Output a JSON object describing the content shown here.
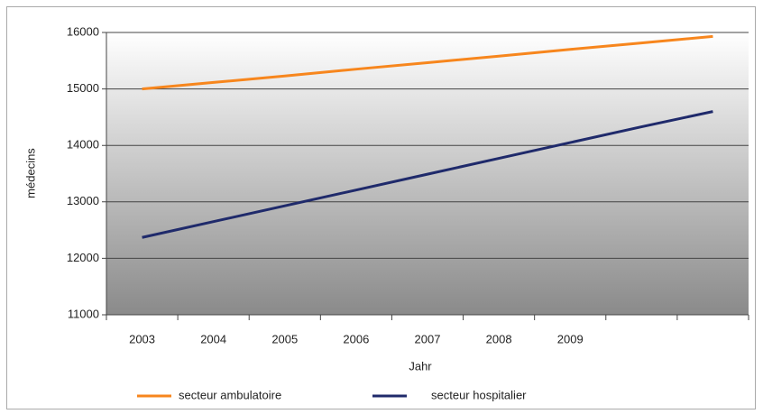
{
  "chart_data": {
    "type": "line",
    "xlabel": "Jahr",
    "ylabel": "médecins",
    "categories": [
      "2003",
      "2004",
      "2005",
      "2006",
      "2007",
      "2008",
      "2009",
      null,
      null
    ],
    "series": [
      {
        "name": "secteur ambulatoire",
        "color": "#f7861d",
        "values": [
          15000,
          15115,
          15230,
          15350,
          15465,
          15580,
          15700,
          15815,
          15930
        ]
      },
      {
        "name": "secteur hospitalier",
        "color": "#1f2a6b",
        "values": [
          12370,
          12650,
          12930,
          13210,
          13490,
          13770,
          14050,
          14330,
          14600
        ]
      }
    ],
    "ylim": [
      11000,
      16000
    ],
    "yticks": [
      11000,
      12000,
      13000,
      14000,
      15000,
      16000
    ],
    "grid": true
  }
}
